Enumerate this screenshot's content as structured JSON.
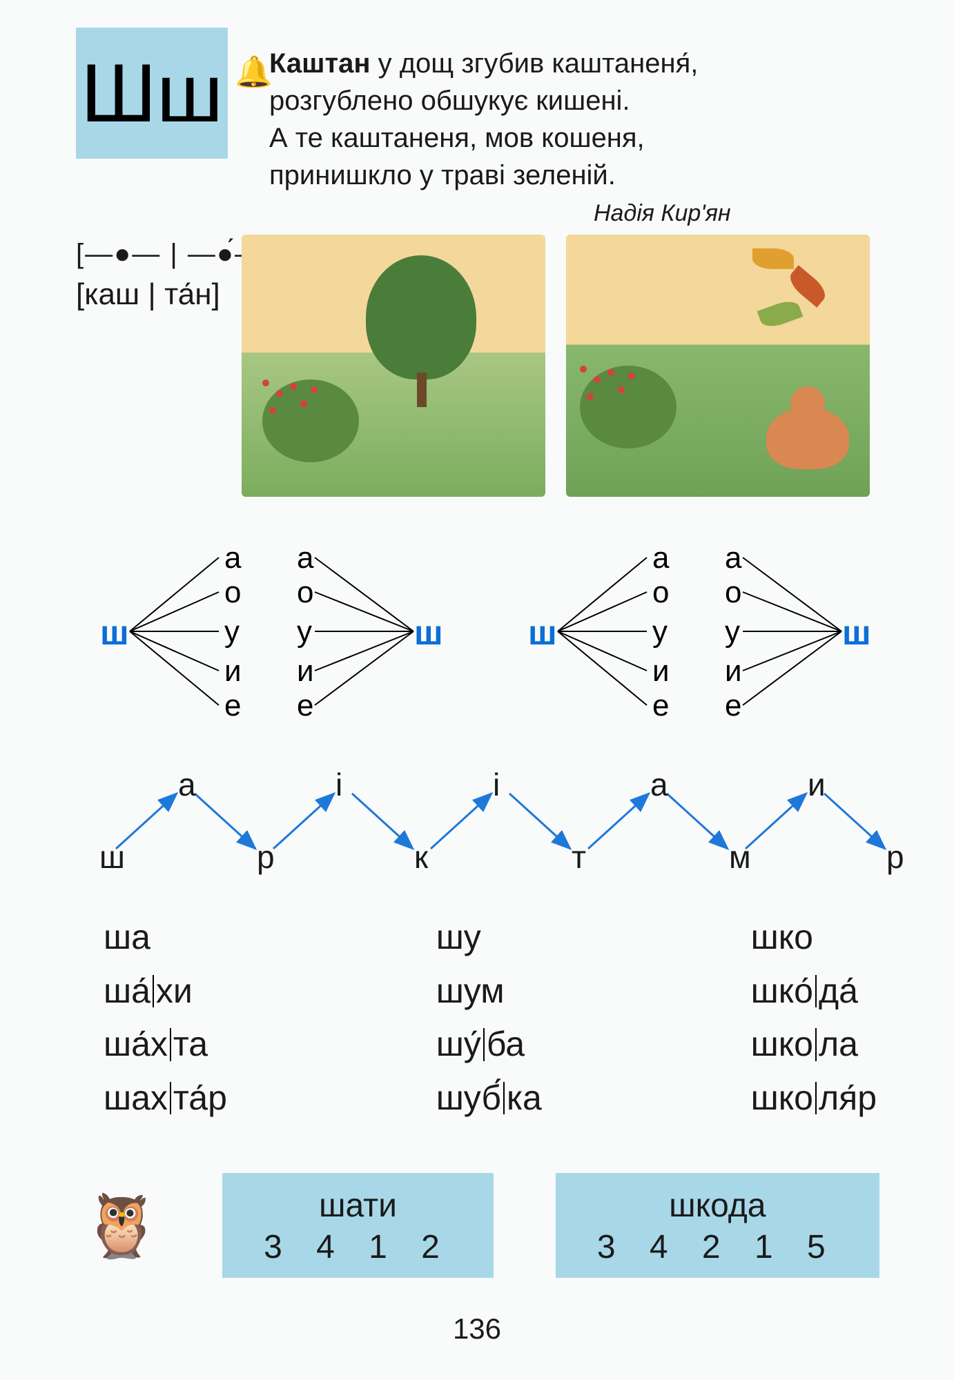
{
  "letter": "Шш",
  "poem": {
    "line1_bold": "Каштан",
    "line1_rest": " у дощ згубив каштаненя́,",
    "line2": "розгублено обшукує кишені.",
    "line3": "А те каштаненя, мов кошеня,",
    "line4": "принишкло у траві зеленій.",
    "author": "Надія Кир'ян"
  },
  "phonetic": {
    "scheme": "[—●— | —●́—]",
    "word": "[каш | та́н]"
  },
  "fan": {
    "vowels": [
      "а",
      "о",
      "у",
      "и",
      "е"
    ],
    "consonant": "ш",
    "colors": {
      "sh": "#0a6fd6",
      "line": "#000000",
      "text": "#1a1a1a"
    },
    "fontsize_vowel": 44,
    "fontsize_sh": 50
  },
  "zigzag": {
    "top": [
      "а",
      "і",
      "і",
      "а",
      "и"
    ],
    "bottom": [
      "ш",
      "р",
      "к",
      "т",
      "м",
      "р"
    ],
    "arrow_color": "#1e78d8"
  },
  "word_columns": [
    [
      "ша",
      "ша́|хи",
      "ша́х|та",
      "шах|та́р"
    ],
    [
      "шу",
      "шум",
      "шу́|ба",
      "шуб́|ка"
    ],
    [
      "шко",
      "шко́|да́",
      "шко|ла",
      "шко|ля́р"
    ]
  ],
  "anagrams": [
    {
      "word": "шати",
      "nums": "3 4 1 2"
    },
    {
      "word": "шкода",
      "nums": "3 4 2 1 5"
    }
  ],
  "page_number": "136",
  "palette": {
    "tile_bg": "#a8d8e8",
    "page_bg": "#f9fafa",
    "text": "#1a1a1a"
  }
}
